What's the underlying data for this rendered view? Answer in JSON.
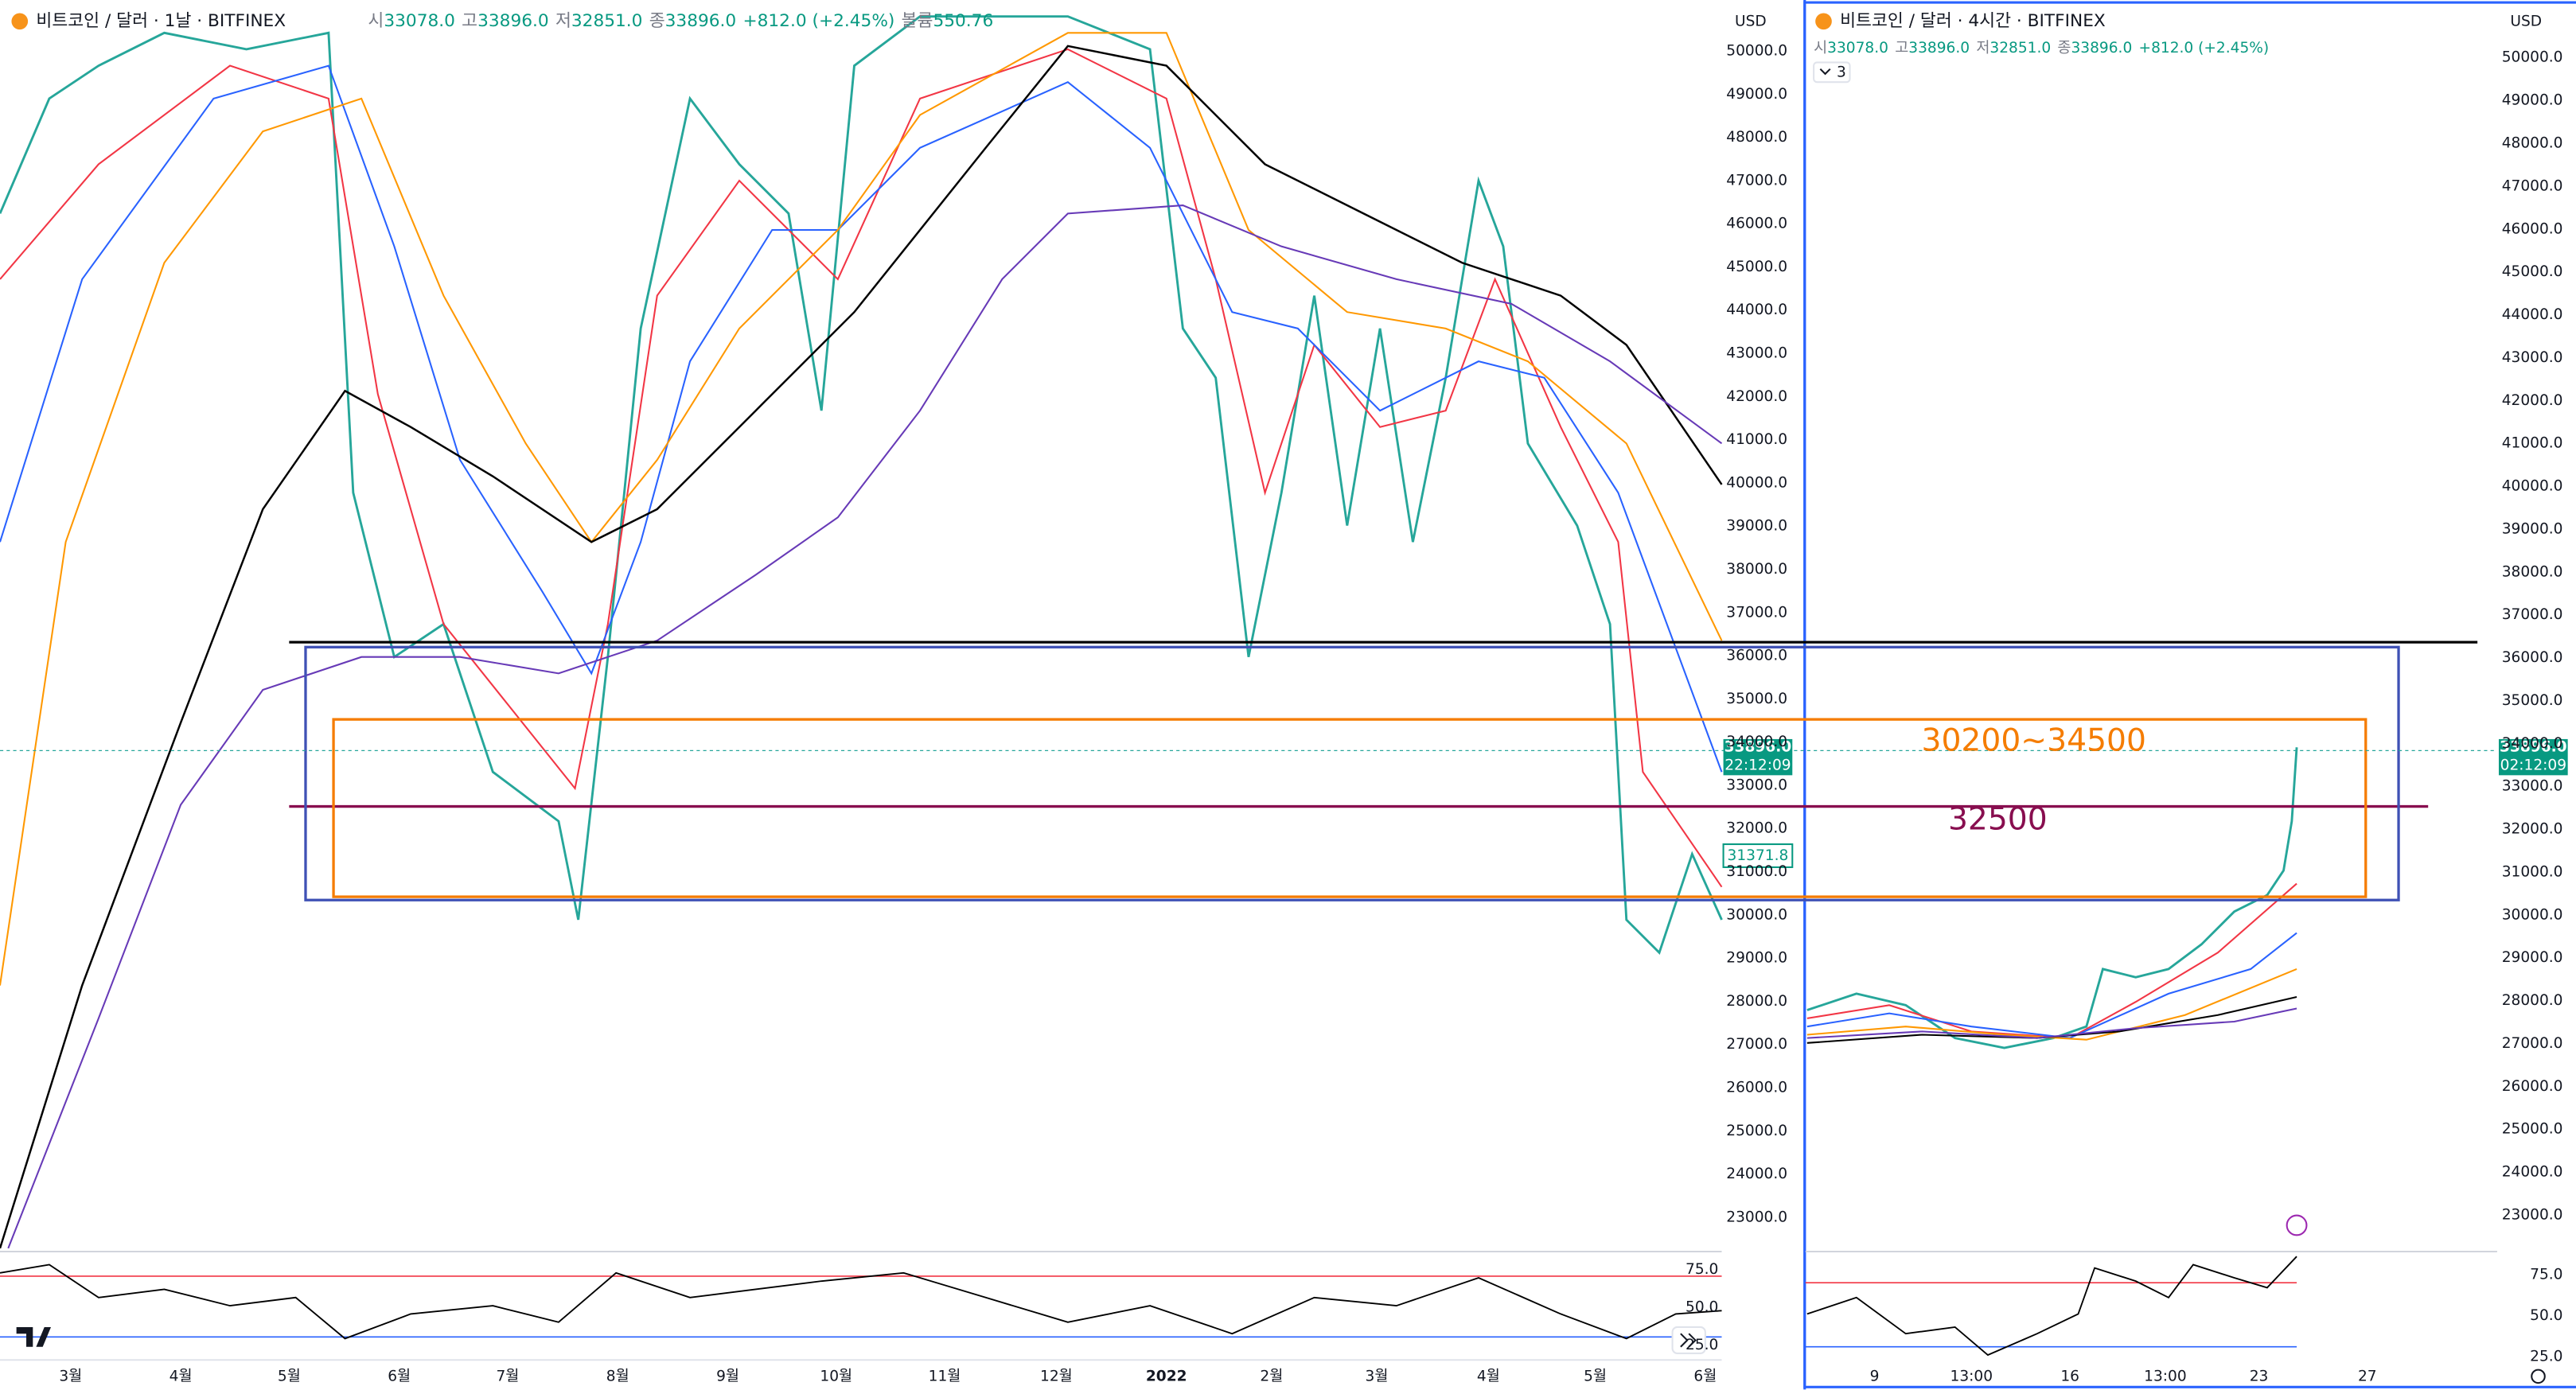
{
  "left_panel": {
    "symbol": "비트코인 / 달러 · 1날 · BITFINEX",
    "ohlc": [
      "시",
      "33078.0",
      "고",
      "33896.0",
      "저",
      "32851.0",
      "종",
      "33896.0",
      "+812.0 (+2.45%)",
      "볼륨",
      "550.76"
    ],
    "currency": "USD",
    "price_axis": [
      "50000.0",
      "49000.0",
      "48000.0",
      "47000.0",
      "46000.0",
      "45000.0",
      "44000.0",
      "43000.0",
      "42000.0",
      "41000.0",
      "40000.0",
      "39000.0",
      "38000.0",
      "37000.0",
      "36000.0",
      "35000.0",
      "34000.0",
      "33000.0",
      "32000.0",
      "31000.0",
      "30000.0",
      "29000.0",
      "28000.0",
      "27000.0",
      "26000.0",
      "25000.0",
      "24000.0",
      "23000.0"
    ],
    "last_price": "33896.0",
    "countdown": "22:12:09",
    "ma_price": "31371.8",
    "rsi_axis": [
      "75.0",
      "50.0",
      "25.0"
    ],
    "time_axis": [
      "3월",
      "4월",
      "5월",
      "6월",
      "7월",
      "8월",
      "9월",
      "10월",
      "11월",
      "12월",
      "2022",
      "2월",
      "3월",
      "4월",
      "5월",
      "6월"
    ]
  },
  "right_panel": {
    "symbol": "비트코인 / 달러 · 4시간 · BITFINEX",
    "ohlc": [
      "시",
      "33078.0",
      "고",
      "33896.0",
      "저",
      "32851.0",
      "종",
      "33896.0",
      "+812.0 (+2.45%)"
    ],
    "indicator_count": "3",
    "currency": "USD",
    "price_axis": [
      "50000.0",
      "49000.0",
      "48000.0",
      "47000.0",
      "46000.0",
      "45000.0",
      "44000.0",
      "43000.0",
      "42000.0",
      "41000.0",
      "40000.0",
      "39000.0",
      "38000.0",
      "37000.0",
      "36000.0",
      "35000.0",
      "34000.0",
      "33000.0",
      "32000.0",
      "31000.0",
      "30000.0",
      "29000.0",
      "28000.0",
      "27000.0",
      "26000.0",
      "25000.0",
      "24000.0",
      "23000.0"
    ],
    "last_price": "33896.0",
    "countdown": "02:12:09",
    "rsi_axis": [
      "75.0",
      "50.0",
      "25.0"
    ],
    "time_axis": [
      "9",
      "13:00",
      "16",
      "13:00",
      "23",
      "27"
    ]
  },
  "annotations": {
    "range": "30200~34500",
    "level": "32500"
  }
}
